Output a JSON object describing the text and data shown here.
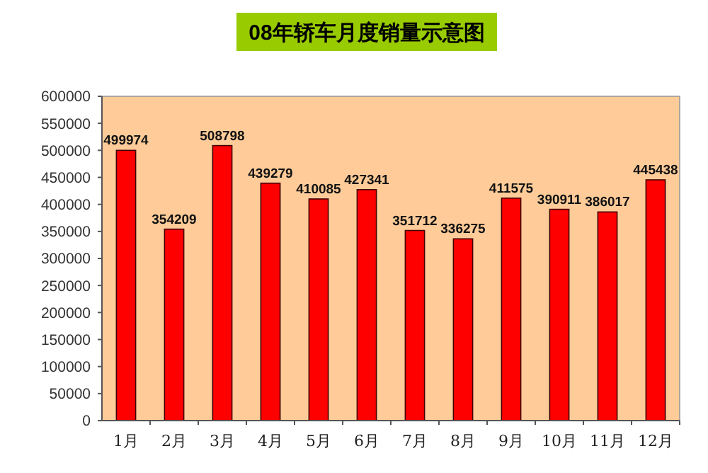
{
  "chart_data": {
    "type": "bar",
    "title": "08年轿车月度销量示意图",
    "categories": [
      "1月",
      "2月",
      "3月",
      "4月",
      "5月",
      "6月",
      "7月",
      "8月",
      "9月",
      "10月",
      "11月",
      "12月"
    ],
    "values": [
      499974,
      354209,
      508798,
      439279,
      410085,
      427341,
      351712,
      336275,
      411575,
      390911,
      386017,
      445438
    ],
    "color": "#ff0000",
    "ylim": [
      0,
      600000
    ],
    "yticks": [
      0,
      50000,
      100000,
      150000,
      200000,
      250000,
      300000,
      350000,
      400000,
      450000,
      500000,
      550000,
      600000
    ],
    "grid": false,
    "data_labels": true
  }
}
